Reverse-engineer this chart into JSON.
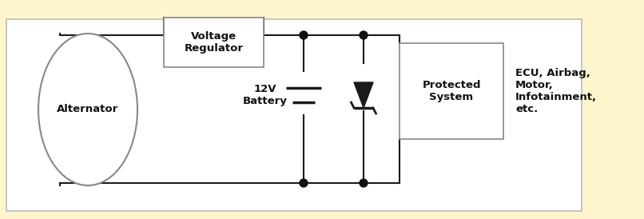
{
  "bg_color": "#FFF5CC",
  "white_bg": "#FFFFFF",
  "border_color": "#BBBBBB",
  "line_color": "#1a1a1a",
  "dot_color": "#111111",
  "alternator_label": "Alternator",
  "voltage_reg_label": "Voltage\nRegulator",
  "battery_label": "12V\nBattery",
  "protected_label": "Protected\nSystem",
  "ecu_label": "ECU, Airbag,\nMotor,\nInfotainment,\netc.",
  "figsize": [
    8.06,
    2.74
  ],
  "dpi": 100
}
